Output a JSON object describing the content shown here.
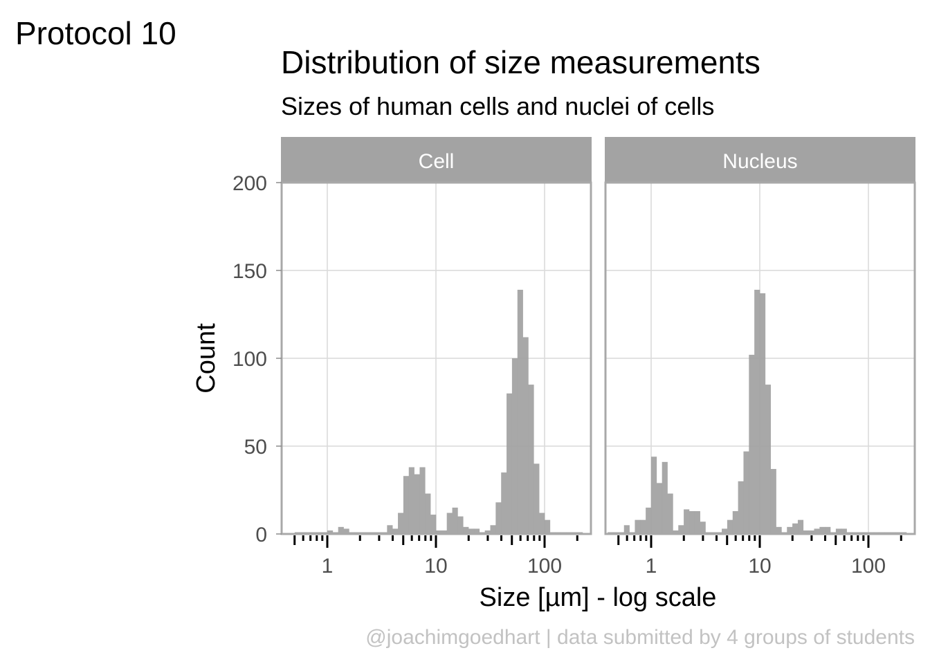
{
  "tag": "Protocol 10",
  "title": "Distribution of size measurements",
  "subtitle": "Sizes of human cells and nuclei of cells",
  "caption": "@joachimgoedhart | data submitted by 4 groups of students",
  "colors": {
    "bar": "#a3a3a3",
    "strip": "#a3a3a3",
    "panel_border": "#a8a8a8",
    "grid": "#d9d9d9",
    "tick": "#000000"
  },
  "chart_data": {
    "type": "bar",
    "subtype": "histogram-faceted",
    "title": "Distribution of size measurements",
    "subtitle": "Sizes of human cells and nuclei of cells",
    "xlabel": "Size [µm] - log scale",
    "ylabel": "Count",
    "x_scale": "log10",
    "xlim": [
      0.4,
      280
    ],
    "ylim": [
      0,
      200
    ],
    "yticks": [
      0,
      50,
      100,
      150,
      200
    ],
    "ytick_labels": [
      "0",
      "50",
      "100",
      "150",
      "200"
    ],
    "xticks": [
      1,
      10,
      100
    ],
    "xtick_labels": [
      "1",
      "10",
      "100"
    ],
    "minor_xticks": [
      0.5,
      0.6,
      0.7,
      0.8,
      0.9,
      2,
      3,
      4,
      5,
      6,
      7,
      8,
      9,
      20,
      30,
      40,
      50,
      60,
      70,
      80,
      90,
      200
    ],
    "grid": true,
    "bin_width_log10": 0.05,
    "panels": [
      {
        "label": "Cell",
        "bins": [
          {
            "log10_start": -0.3,
            "count": 1
          },
          {
            "log10_start": -0.25,
            "count": 1
          },
          {
            "log10_start": -0.2,
            "count": 1
          },
          {
            "log10_start": -0.15,
            "count": 1
          },
          {
            "log10_start": -0.1,
            "count": 1
          },
          {
            "log10_start": -0.05,
            "count": 1
          },
          {
            "log10_start": 0.0,
            "count": 2
          },
          {
            "log10_start": 0.05,
            "count": 1
          },
          {
            "log10_start": 0.1,
            "count": 4
          },
          {
            "log10_start": 0.15,
            "count": 3
          },
          {
            "log10_start": 0.2,
            "count": 1
          },
          {
            "log10_start": 0.25,
            "count": 1
          },
          {
            "log10_start": 0.3,
            "count": 1
          },
          {
            "log10_start": 0.35,
            "count": 1
          },
          {
            "log10_start": 0.4,
            "count": 1
          },
          {
            "log10_start": 0.45,
            "count": 1
          },
          {
            "log10_start": 0.5,
            "count": 1
          },
          {
            "log10_start": 0.55,
            "count": 5
          },
          {
            "log10_start": 0.6,
            "count": 3
          },
          {
            "log10_start": 0.65,
            "count": 12
          },
          {
            "log10_start": 0.7,
            "count": 33
          },
          {
            "log10_start": 0.75,
            "count": 38
          },
          {
            "log10_start": 0.8,
            "count": 34
          },
          {
            "log10_start": 0.85,
            "count": 38
          },
          {
            "log10_start": 0.9,
            "count": 23
          },
          {
            "log10_start": 0.95,
            "count": 11
          },
          {
            "log10_start": 1.0,
            "count": 2
          },
          {
            "log10_start": 1.05,
            "count": 2
          },
          {
            "log10_start": 1.1,
            "count": 12
          },
          {
            "log10_start": 1.15,
            "count": 15
          },
          {
            "log10_start": 1.2,
            "count": 10
          },
          {
            "log10_start": 1.25,
            "count": 4
          },
          {
            "log10_start": 1.3,
            "count": 3
          },
          {
            "log10_start": 1.35,
            "count": 3
          },
          {
            "log10_start": 1.4,
            "count": 1
          },
          {
            "log10_start": 1.45,
            "count": 2
          },
          {
            "log10_start": 1.5,
            "count": 5
          },
          {
            "log10_start": 1.55,
            "count": 18
          },
          {
            "log10_start": 1.6,
            "count": 35
          },
          {
            "log10_start": 1.65,
            "count": 80
          },
          {
            "log10_start": 1.7,
            "count": 100
          },
          {
            "log10_start": 1.75,
            "count": 139
          },
          {
            "log10_start": 1.8,
            "count": 112
          },
          {
            "log10_start": 1.85,
            "count": 85
          },
          {
            "log10_start": 1.9,
            "count": 40
          },
          {
            "log10_start": 1.95,
            "count": 12
          },
          {
            "log10_start": 2.0,
            "count": 8
          },
          {
            "log10_start": 2.05,
            "count": 1
          },
          {
            "log10_start": 2.1,
            "count": 1
          },
          {
            "log10_start": 2.15,
            "count": 1
          },
          {
            "log10_start": 2.2,
            "count": 1
          },
          {
            "log10_start": 2.25,
            "count": 1
          },
          {
            "log10_start": 2.3,
            "count": 1
          }
        ]
      },
      {
        "label": "Nucleus",
        "bins": [
          {
            "log10_start": -0.4,
            "count": 1
          },
          {
            "log10_start": -0.35,
            "count": 1
          },
          {
            "log10_start": -0.3,
            "count": 1
          },
          {
            "log10_start": -0.25,
            "count": 5
          },
          {
            "log10_start": -0.2,
            "count": 1
          },
          {
            "log10_start": -0.15,
            "count": 8
          },
          {
            "log10_start": -0.1,
            "count": 8
          },
          {
            "log10_start": -0.05,
            "count": 15
          },
          {
            "log10_start": 0.0,
            "count": 44
          },
          {
            "log10_start": 0.05,
            "count": 29
          },
          {
            "log10_start": 0.1,
            "count": 41
          },
          {
            "log10_start": 0.15,
            "count": 23
          },
          {
            "log10_start": 0.2,
            "count": 2
          },
          {
            "log10_start": 0.25,
            "count": 5
          },
          {
            "log10_start": 0.3,
            "count": 14
          },
          {
            "log10_start": 0.35,
            "count": 13
          },
          {
            "log10_start": 0.4,
            "count": 13
          },
          {
            "log10_start": 0.45,
            "count": 7
          },
          {
            "log10_start": 0.5,
            "count": 1
          },
          {
            "log10_start": 0.55,
            "count": 1
          },
          {
            "log10_start": 0.6,
            "count": 1
          },
          {
            "log10_start": 0.65,
            "count": 3
          },
          {
            "log10_start": 0.7,
            "count": 8
          },
          {
            "log10_start": 0.75,
            "count": 13
          },
          {
            "log10_start": 0.8,
            "count": 30
          },
          {
            "log10_start": 0.85,
            "count": 47
          },
          {
            "log10_start": 0.9,
            "count": 102
          },
          {
            "log10_start": 0.95,
            "count": 139
          },
          {
            "log10_start": 1.0,
            "count": 137
          },
          {
            "log10_start": 1.05,
            "count": 85
          },
          {
            "log10_start": 1.1,
            "count": 37
          },
          {
            "log10_start": 1.15,
            "count": 4
          },
          {
            "log10_start": 1.2,
            "count": 1
          },
          {
            "log10_start": 1.25,
            "count": 4
          },
          {
            "log10_start": 1.3,
            "count": 6
          },
          {
            "log10_start": 1.35,
            "count": 8
          },
          {
            "log10_start": 1.4,
            "count": 2
          },
          {
            "log10_start": 1.45,
            "count": 2
          },
          {
            "log10_start": 1.5,
            "count": 3
          },
          {
            "log10_start": 1.55,
            "count": 4
          },
          {
            "log10_start": 1.6,
            "count": 4
          },
          {
            "log10_start": 1.65,
            "count": 1
          },
          {
            "log10_start": 1.7,
            "count": 3
          },
          {
            "log10_start": 1.75,
            "count": 3
          },
          {
            "log10_start": 1.8,
            "count": 1
          },
          {
            "log10_start": 1.85,
            "count": 1
          },
          {
            "log10_start": 1.9,
            "count": 1
          },
          {
            "log10_start": 1.95,
            "count": 1
          },
          {
            "log10_start": 2.0,
            "count": 1
          },
          {
            "log10_start": 2.05,
            "count": 1
          },
          {
            "log10_start": 2.1,
            "count": 1
          },
          {
            "log10_start": 2.15,
            "count": 1
          },
          {
            "log10_start": 2.2,
            "count": 1
          },
          {
            "log10_start": 2.25,
            "count": 1
          },
          {
            "log10_start": 2.3,
            "count": 1
          }
        ]
      }
    ]
  }
}
